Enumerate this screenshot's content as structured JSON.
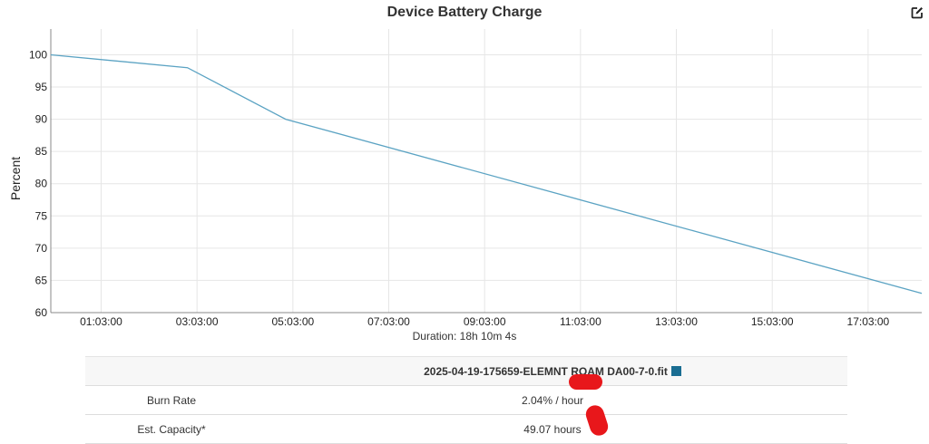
{
  "chart_data": {
    "type": "line",
    "title": "Device Battery Charge",
    "ylabel": "Percent",
    "xlabel": "",
    "ylim": [
      60,
      104
    ],
    "yticks": [
      60,
      65,
      70,
      75,
      80,
      85,
      90,
      95,
      100
    ],
    "x_tick_labels": [
      "01:03:00",
      "03:03:00",
      "05:03:00",
      "07:03:00",
      "09:03:00",
      "11:03:00",
      "13:03:00",
      "15:03:00",
      "17:03:00"
    ],
    "x_tick_hours": [
      1.05,
      3.05,
      5.05,
      7.05,
      9.05,
      11.05,
      13.05,
      15.05,
      17.05
    ],
    "xlim_hours": [
      0,
      18.169
    ],
    "grid": true,
    "line_color": "#5ba3c3",
    "duration_label": "Duration: 18h 10m 4s",
    "series": [
      {
        "name": "2025-04-19-175659-ELEMNT ROAM DA00-7-0.fit",
        "x_hours": [
          0,
          2.85,
          4.9,
          18.169
        ],
        "values": [
          100,
          98,
          90,
          63
        ]
      }
    ]
  },
  "summary": {
    "file_name": "2025-04-19-175659-ELEMNT ROAM DA00-7-0.fit",
    "swatch_color": "#1a6d92",
    "rows": [
      {
        "label": "Burn Rate",
        "value": "2.04% / hour"
      },
      {
        "label": "Est. Capacity*",
        "value": "49.07 hours"
      }
    ]
  },
  "icons": {
    "edit": "edit-icon"
  }
}
